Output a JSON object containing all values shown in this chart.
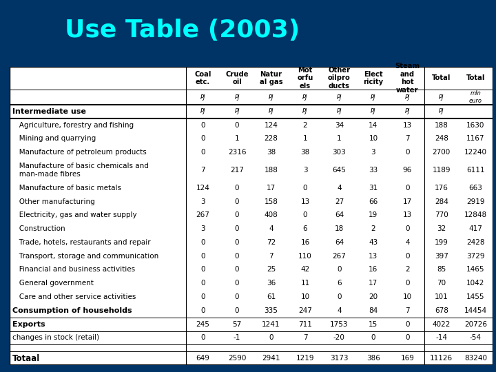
{
  "title": "Use Table (2003)",
  "title_color": "#00FFFF",
  "title_bg_color": "#003366",
  "col_headers": [
    "Coal\netc.",
    "Crude\noil",
    "Natur\nal gas",
    "Mot\norfu\nels",
    "Other\noilpro\nducts",
    "Elect\nricity",
    "Steam\nand\nhot\nwater",
    "Total",
    "Total"
  ],
  "unit_row": [
    "PJ",
    "PJ",
    "PJ",
    "PJ",
    "PJ",
    "PJ",
    "PJ",
    "PJ",
    "mln\neuro"
  ],
  "row_labels": [
    "Intermediate use",
    "   Agriculture, forestry and fishing",
    "   Mining and quarrying",
    "   Manufacture of petroleum products",
    "   Manufacture of basic chemicals and\n   man-made fibres",
    "   Manufacture of basic metals",
    "   Other manufacturing",
    "   Electricity, gas and water supply",
    "   Construction",
    "   Trade, hotels, restaurants and repair",
    "   Transport, storage and communication",
    "   Financial and business activities",
    "   General government",
    "   Care and other service activities",
    "Consumption of households",
    "Exports",
    "changes in stock (retail)",
    "",
    "Totaal"
  ],
  "row_label_bold": [
    true,
    false,
    false,
    false,
    false,
    false,
    false,
    false,
    false,
    false,
    false,
    false,
    false,
    false,
    true,
    true,
    false,
    false,
    true
  ],
  "row_is_tall": [
    false,
    false,
    false,
    false,
    true,
    false,
    false,
    false,
    false,
    false,
    false,
    false,
    false,
    false,
    false,
    false,
    false,
    false,
    false
  ],
  "data": [
    [
      "PJ",
      "PJ",
      "PJ",
      "PJ",
      "PJ",
      "PJ",
      "PJ",
      "PJ",
      ""
    ],
    [
      0,
      0,
      124,
      2,
      34,
      14,
      13,
      188,
      1630
    ],
    [
      0,
      1,
      228,
      1,
      1,
      10,
      7,
      248,
      1167
    ],
    [
      0,
      2316,
      38,
      38,
      303,
      3,
      0,
      2700,
      12240
    ],
    [
      7,
      217,
      188,
      3,
      645,
      33,
      96,
      1189,
      6111
    ],
    [
      124,
      0,
      17,
      0,
      4,
      31,
      0,
      176,
      663
    ],
    [
      3,
      0,
      158,
      13,
      27,
      66,
      17,
      284,
      2919
    ],
    [
      267,
      0,
      408,
      0,
      64,
      19,
      13,
      770,
      12848
    ],
    [
      3,
      0,
      4,
      6,
      18,
      2,
      0,
      32,
      417
    ],
    [
      0,
      0,
      72,
      16,
      64,
      43,
      4,
      199,
      2428
    ],
    [
      0,
      0,
      7,
      110,
      267,
      13,
      0,
      397,
      3729
    ],
    [
      0,
      0,
      25,
      42,
      0,
      16,
      2,
      85,
      1465
    ],
    [
      0,
      0,
      36,
      11,
      6,
      17,
      0,
      70,
      1042
    ],
    [
      0,
      0,
      61,
      10,
      0,
      20,
      10,
      101,
      1455
    ],
    [
      0,
      0,
      335,
      247,
      4,
      84,
      7,
      678,
      14454
    ],
    [
      245,
      57,
      1241,
      711,
      1753,
      15,
      0,
      4022,
      20726
    ],
    [
      0,
      -1,
      0,
      7,
      -20,
      0,
      0,
      -14,
      -54
    ],
    [
      "",
      "",
      "",
      "",
      "",
      "",
      "",
      "",
      ""
    ],
    [
      649,
      2590,
      2941,
      1219,
      3173,
      386,
      169,
      11126,
      83240
    ]
  ],
  "thick_line_after": [
    0,
    18
  ],
  "thin_line_after": [
    14,
    15,
    16,
    17
  ]
}
